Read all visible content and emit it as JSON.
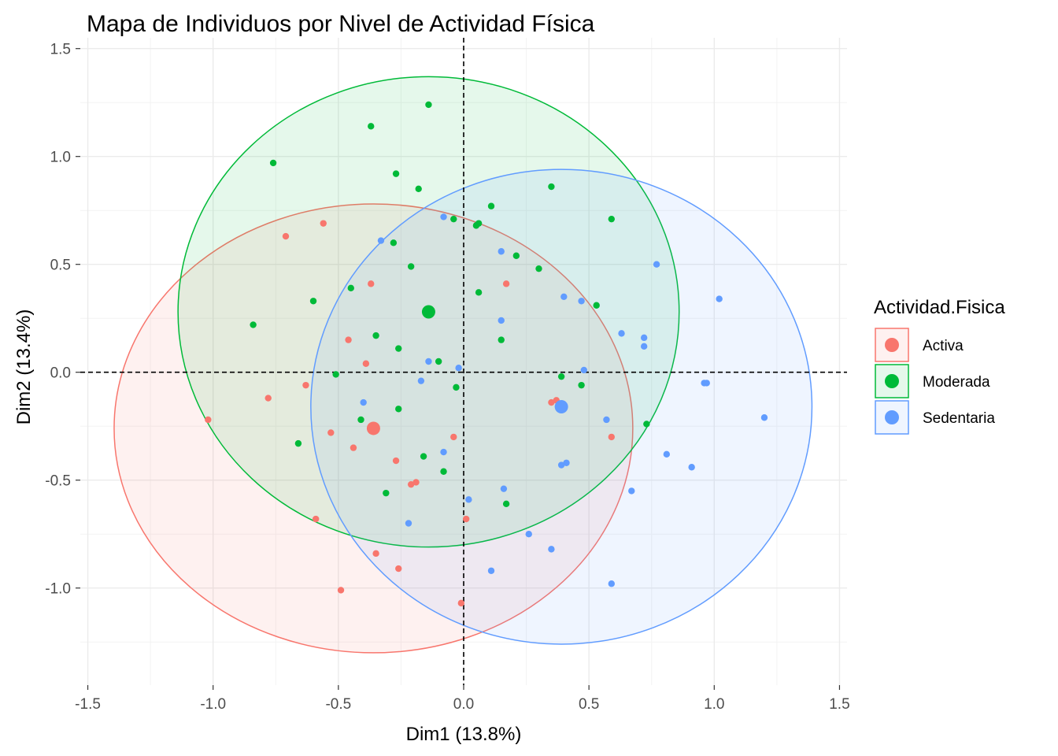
{
  "colors": {
    "Activa": "#F8766D",
    "Moderada": "#00BA38",
    "Sedentaria": "#619CFF"
  },
  "chart_data": {
    "type": "scatter",
    "title": "Mapa de Individuos por Nivel de Actividad Física",
    "xlabel": "Dim1 (13.8%)",
    "ylabel": "Dim2 (13.4%)",
    "xlim": [
      -1.53,
      1.53
    ],
    "ylim": [
      -1.45,
      1.55
    ],
    "x_ticks": [
      -1.5,
      -1.0,
      -0.5,
      0.0,
      0.5,
      1.0,
      1.5
    ],
    "x_tick_labels": [
      "-1.5",
      "-1.0",
      "-0.5",
      "0.0",
      "0.5",
      "1.0",
      "1.5"
    ],
    "y_ticks": [
      -1.0,
      -0.5,
      0.0,
      0.5,
      1.0,
      1.5
    ],
    "y_tick_labels": [
      "-1.0",
      "-0.5",
      "0.0",
      "0.5",
      "1.0",
      "1.5"
    ],
    "grid": true,
    "reference_lines": {
      "x": 0,
      "y": 0
    },
    "legend": {
      "title": "Actividad.Fisica",
      "position": "right"
    },
    "series": [
      {
        "name": "Activa",
        "centroid": [
          -0.36,
          -0.26
        ],
        "ellipse": {
          "cx": -0.36,
          "cy": -0.26,
          "rx": 1.035,
          "ry": 1.04
        },
        "points": [
          [
            -1.02,
            -0.22
          ],
          [
            -0.78,
            -0.12
          ],
          [
            -0.71,
            0.63
          ],
          [
            -0.56,
            0.69
          ],
          [
            -0.63,
            -0.06
          ],
          [
            -0.53,
            -0.28
          ],
          [
            -0.59,
            -0.68
          ],
          [
            -0.49,
            -1.01
          ],
          [
            -0.37,
            0.41
          ],
          [
            -0.46,
            0.15
          ],
          [
            -0.39,
            0.04
          ],
          [
            -0.44,
            -0.35
          ],
          [
            -0.27,
            -0.41
          ],
          [
            -0.21,
            -0.52
          ],
          [
            -0.19,
            -0.51
          ],
          [
            -0.35,
            -0.84
          ],
          [
            -0.26,
            -0.91
          ],
          [
            -0.04,
            -0.3
          ],
          [
            0.01,
            -0.68
          ],
          [
            -0.01,
            -1.07
          ],
          [
            0.17,
            0.41
          ],
          [
            0.35,
            -0.14
          ],
          [
            0.37,
            -0.13
          ],
          [
            0.59,
            -0.3
          ]
        ]
      },
      {
        "name": "Moderada",
        "centroid": [
          -0.14,
          0.28
        ],
        "ellipse": {
          "cx": -0.14,
          "cy": 0.28,
          "rx": 1.0,
          "ry": 1.09
        },
        "points": [
          [
            -0.76,
            0.97
          ],
          [
            -0.84,
            0.22
          ],
          [
            -0.6,
            0.33
          ],
          [
            -0.66,
            -0.33
          ],
          [
            -0.51,
            -0.01
          ],
          [
            -0.45,
            0.39
          ],
          [
            -0.37,
            1.14
          ],
          [
            -0.27,
            0.92
          ],
          [
            -0.18,
            0.85
          ],
          [
            -0.14,
            1.24
          ],
          [
            -0.28,
            0.6
          ],
          [
            -0.21,
            0.49
          ],
          [
            -0.35,
            0.17
          ],
          [
            -0.26,
            0.11
          ],
          [
            -0.1,
            0.05
          ],
          [
            -0.41,
            -0.22
          ],
          [
            -0.26,
            -0.17
          ],
          [
            -0.31,
            -0.56
          ],
          [
            -0.16,
            -0.39
          ],
          [
            -0.08,
            -0.46
          ],
          [
            -0.04,
            0.71
          ],
          [
            0.06,
            0.69
          ],
          [
            0.05,
            0.68
          ],
          [
            0.11,
            0.77
          ],
          [
            0.21,
            0.54
          ],
          [
            0.06,
            0.37
          ],
          [
            0.3,
            0.48
          ],
          [
            0.15,
            0.15
          ],
          [
            -0.03,
            -0.07
          ],
          [
            0.17,
            -0.61
          ],
          [
            0.35,
            0.86
          ],
          [
            0.59,
            0.71
          ],
          [
            0.53,
            0.31
          ],
          [
            0.39,
            -0.02
          ],
          [
            0.47,
            -0.06
          ],
          [
            0.73,
            -0.24
          ]
        ]
      },
      {
        "name": "Sedentaria",
        "centroid": [
          0.39,
          -0.16
        ],
        "ellipse": {
          "cx": 0.39,
          "cy": -0.16,
          "rx": 1.0,
          "ry": 1.1
        },
        "points": [
          [
            -0.33,
            0.61
          ],
          [
            -0.08,
            0.72
          ],
          [
            -0.14,
            0.05
          ],
          [
            -0.17,
            -0.04
          ],
          [
            -0.02,
            0.02
          ],
          [
            -0.4,
            -0.14
          ],
          [
            -0.08,
            -0.37
          ],
          [
            -0.22,
            -0.7
          ],
          [
            0.02,
            -0.59
          ],
          [
            0.15,
            0.56
          ],
          [
            0.15,
            0.24
          ],
          [
            0.4,
            0.35
          ],
          [
            0.47,
            0.33
          ],
          [
            0.77,
            0.5
          ],
          [
            0.63,
            0.18
          ],
          [
            0.72,
            0.16
          ],
          [
            0.72,
            0.12
          ],
          [
            1.02,
            0.34
          ],
          [
            0.48,
            0.01
          ],
          [
            0.57,
            -0.22
          ],
          [
            0.96,
            -0.05
          ],
          [
            0.97,
            -0.05
          ],
          [
            1.2,
            -0.21
          ],
          [
            0.81,
            -0.38
          ],
          [
            0.91,
            -0.44
          ],
          [
            0.39,
            -0.43
          ],
          [
            0.41,
            -0.42
          ],
          [
            0.16,
            -0.54
          ],
          [
            0.67,
            -0.55
          ],
          [
            0.26,
            -0.75
          ],
          [
            0.35,
            -0.82
          ],
          [
            0.11,
            -0.92
          ],
          [
            0.59,
            -0.98
          ]
        ]
      }
    ]
  }
}
